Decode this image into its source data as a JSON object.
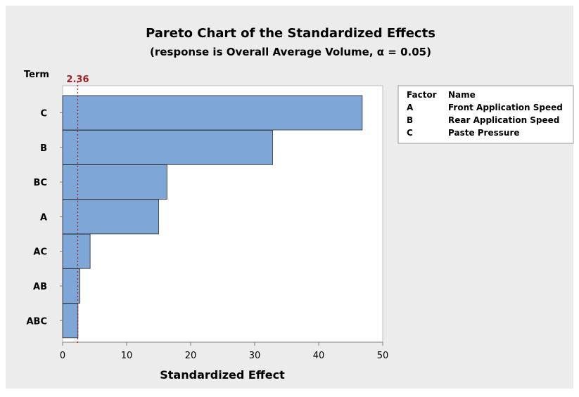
{
  "chart_data": {
    "type": "bar",
    "orientation": "horizontal",
    "title": "Pareto Chart of the Standardized Effects",
    "subtitle": "(response is Overall Average Volume, α = 0.05)",
    "ylabel": "Term",
    "xlabel": "Standardized Effect",
    "categories": [
      "C",
      "B",
      "BC",
      "A",
      "AC",
      "AB",
      "ABC"
    ],
    "values": [
      46.8,
      32.8,
      16.3,
      15.0,
      4.3,
      2.7,
      2.4
    ],
    "xlim": [
      0,
      50
    ],
    "xticks": [
      0,
      10,
      20,
      30,
      40,
      50
    ],
    "xtick_labels": [
      "0",
      "10",
      "20",
      "30",
      "40",
      "50"
    ],
    "reference_line": {
      "value": 2.36,
      "label": "2.36",
      "color": "#a32020"
    },
    "bar_color": "#7ea7d8",
    "bar_edge_color": "#2a2a2a",
    "grid": false,
    "legend": {
      "placement": "right",
      "header": [
        "Factor",
        "Name"
      ],
      "rows": [
        [
          "A",
          "Front Application Speed"
        ],
        [
          "B",
          "Rear Application Speed"
        ],
        [
          "C",
          "Paste Pressure"
        ]
      ]
    }
  },
  "colors": {
    "figure_background": "#ececec",
    "plot_background": "#ffffff",
    "axis_line": "#7f7f7f"
  }
}
